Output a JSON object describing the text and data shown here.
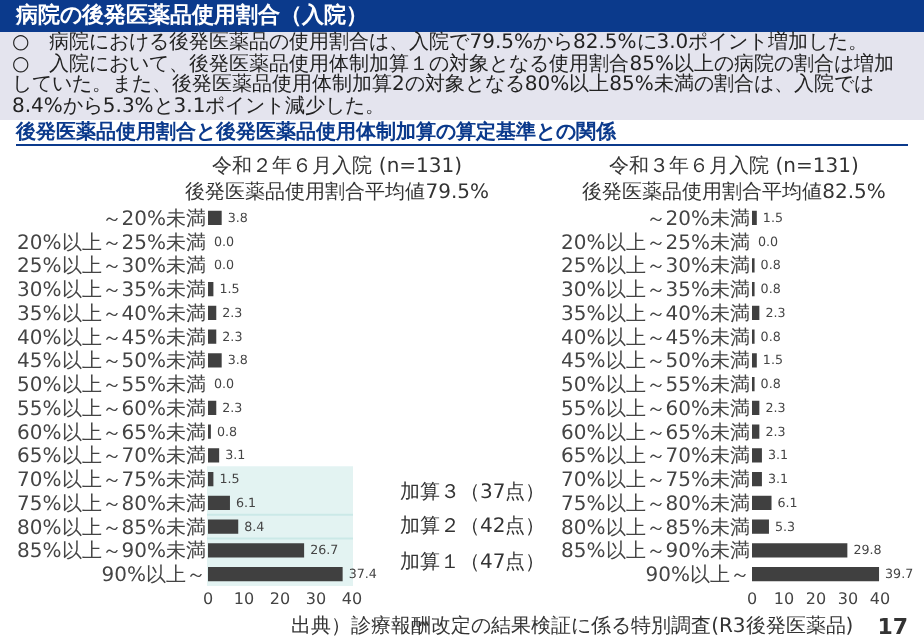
{
  "chart_data": [
    {
      "type": "bar",
      "orientation": "horizontal",
      "title": "令和２年６月入院 (n=131)",
      "subtitle": "後発医薬品使用割合平均値79.5%",
      "categories": [
        "～20%未満",
        "20%以上～25%未満",
        "25%以上～30%未満",
        "30%以上～35%未満",
        "35%以上～40%未満",
        "40%以上～45%未満",
        "45%以上～50%未満",
        "50%以上～55%未満",
        "55%以上～60%未満",
        "60%以上～65%未満",
        "65%以上～70%未満",
        "70%以上～75%未満",
        "75%以上～80%未満",
        "80%以上～85%未満",
        "85%以上～90%未満",
        "90%以上～"
      ],
      "values": [
        3.8,
        0.0,
        0.0,
        1.5,
        2.3,
        2.3,
        3.8,
        0.0,
        2.3,
        0.8,
        3.1,
        1.5,
        6.1,
        8.4,
        26.7,
        37.4
      ],
      "value_labels": [
        "3.8",
        "0.0",
        "0.0",
        "1.5",
        "2.3",
        "2.3",
        "3.8",
        "0.0",
        "2.3",
        "0.8",
        "3.1",
        "1.5",
        "6.1",
        "8.4",
        "26.7",
        "37.4"
      ],
      "color": "#404040",
      "xlim": [
        0,
        40
      ],
      "xticks": [
        0,
        10,
        20,
        30,
        40
      ],
      "bands": [
        {
          "axis": "y",
          "from": "70%以上～75%未満",
          "to": "75%以上～80%未満",
          "label": "加算３（37点）",
          "color": "#4bb3b0"
        },
        {
          "axis": "y",
          "from": "80%以上～85%未満",
          "to": "80%以上～85%未満",
          "label": "加算２（42点）",
          "color": "#4bb3b0"
        },
        {
          "axis": "y",
          "from": "85%以上～90%未満",
          "to": "90%以上～",
          "label": "加算１（47点）",
          "color": "#4bb3b0"
        }
      ],
      "annotations": [
        "病院の後発医薬品使用割合（入院）",
        "○　病院における後発医薬品の使用割合は、入院で79.5%から82.5%に3.0ポイント増加した。",
        "○　入院において、後発医薬品使用体制加算１の対象となる使用割合85%以上の病院の割合は増加していた。また、後発医薬品使用体制加算2の対象となる80%以上85%未満の割合は、入院では8.4%から5.3%と3.1ポイント減少した。",
        "後発医薬品使用割合と後発医薬品使用体制加算の算定基準との関係"
      ]
    },
    {
      "type": "bar",
      "orientation": "horizontal",
      "title": "令和３年６月入院 (n=131)",
      "subtitle": "後発医薬品使用割合平均値82.5%",
      "categories": [
        "～20%未満",
        "20%以上～25%未満",
        "25%以上～30%未満",
        "30%以上～35%未満",
        "35%以上～40%未満",
        "40%以上～45%未満",
        "45%以上～50%未満",
        "50%以上～55%未満",
        "55%以上～60%未満",
        "60%以上～65%未満",
        "65%以上～70%未満",
        "70%以上～75%未満",
        "75%以上～80%未満",
        "80%以上～85%未満",
        "85%以上～90%未満",
        "90%以上～"
      ],
      "values": [
        1.5,
        0.0,
        0.8,
        0.8,
        2.3,
        0.8,
        1.5,
        0.8,
        2.3,
        2.3,
        3.1,
        3.1,
        6.1,
        5.3,
        29.8,
        39.7
      ],
      "value_labels": [
        "1.5",
        "0.0",
        "0.8",
        "0.8",
        "2.3",
        "0.8",
        "1.5",
        "0.8",
        "2.3",
        "2.3",
        "3.1",
        "3.1",
        "6.1",
        "5.3",
        "29.8",
        "39.7"
      ],
      "color": "#404040",
      "xlim": [
        0,
        40
      ],
      "xticks": [
        0,
        10,
        20,
        30,
        40
      ],
      "annotations": [
        "出典）診療報酬改定の結果検証に係る特別調査(R3後発医薬品)",
        "17"
      ]
    }
  ]
}
